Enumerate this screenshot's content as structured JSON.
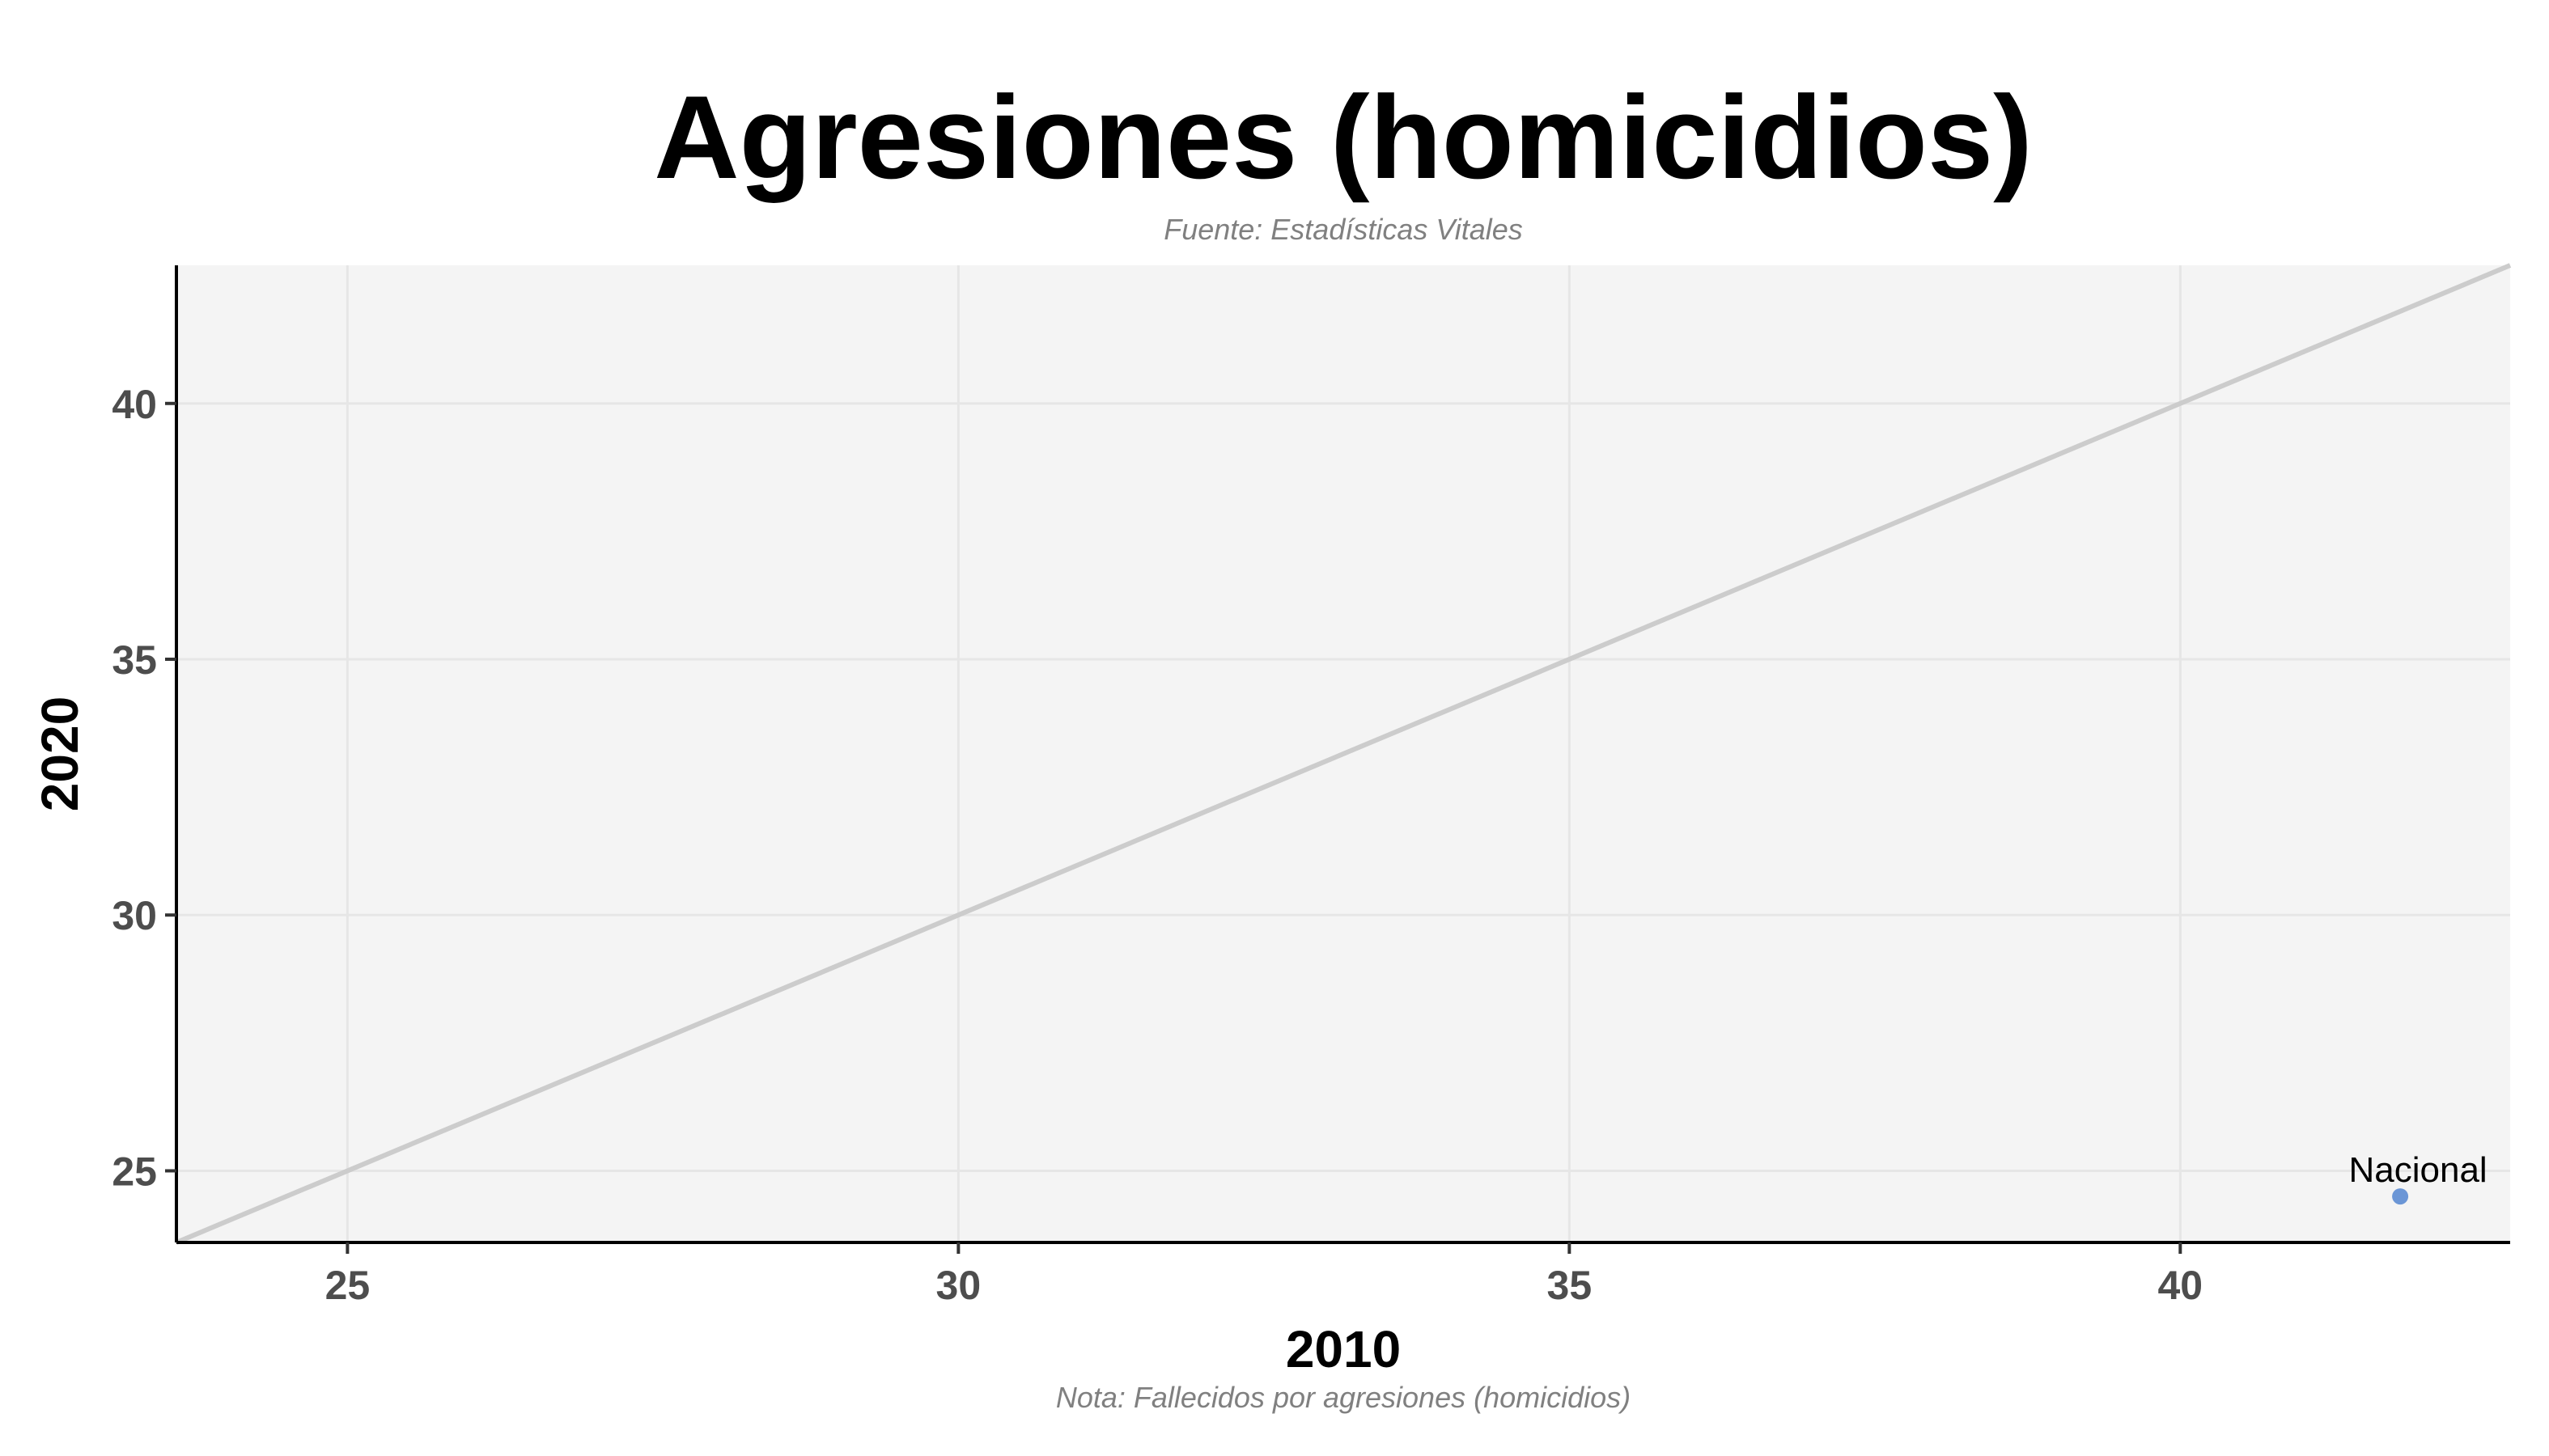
{
  "chart_data": {
    "type": "scatter",
    "title": "Agresiones (homicidios)",
    "subtitle": "Fuente: Estadísticas Vitales",
    "note": "Nota: Fallecidos por agresiones (homicidios)",
    "xlabel": "2010",
    "ylabel": "2020",
    "xlim": [
      23.6,
      42.7
    ],
    "ylim": [
      23.6,
      42.7
    ],
    "x_ticks": [
      25,
      30,
      35,
      40
    ],
    "y_ticks": [
      25,
      30,
      35,
      40
    ],
    "grid": true,
    "reference_line": "y = x",
    "colors": {
      "panel_background": "#f4f4f4",
      "grid": "#e6e6e6",
      "reference_line": "#cccccc",
      "point": "#6b96d6",
      "axis": "#000000"
    },
    "points": [
      {
        "label": "Nacional",
        "x": 41.8,
        "y": 24.5
      }
    ]
  }
}
